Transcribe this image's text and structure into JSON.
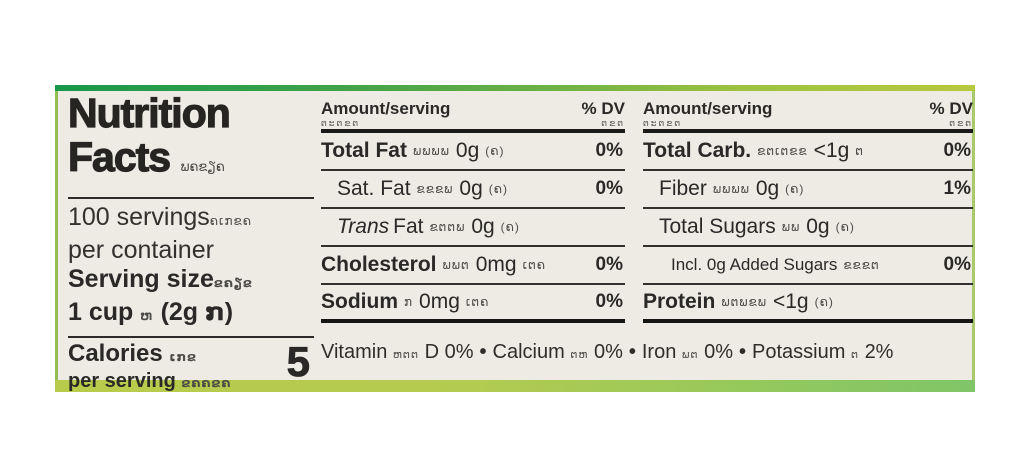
{
  "panel": {
    "background": "#edebe4",
    "accent_green_dark": "#17984a",
    "accent_green_yellow": "#b7c83e",
    "accent_bottom_left": "#b9cb4b",
    "accent_bottom_right": "#7fc568"
  },
  "left": {
    "title_line1": "Nutrition",
    "title_line2": "Facts",
    "title_suffix": "ພຄຂຽຄ",
    "servings_count": "100 servings",
    "servings_suffix": "ຄເກຂຄ",
    "servings_line2": "per container",
    "serving_size_label": "Serving size",
    "serving_size_suffix": "ຂຄຽຂ",
    "serving_size_value": "1 cup",
    "serving_size_mid": "ຫ",
    "serving_size_weight": "(2g ກ)",
    "calories_label": "Calories",
    "calories_suffix": "ເກຂ",
    "calories_sub": "per serving",
    "calories_sub_suffix": "ຂຄຄຂຄ",
    "calories_value": "5"
  },
  "mid": {
    "header_amount": "Amount/serving",
    "header_amount_sub": "ຕະຕຂຕ",
    "header_dv": "% DV",
    "header_dv_sub": "ຕຂຕ",
    "rows": [
      {
        "name": "Total Fat",
        "kh": "ພພພພ",
        "value": "0g",
        "kh2": "(ຄ)",
        "dv": "0%"
      },
      {
        "name": "Sat. Fat",
        "kh": "ຂຂຂພ",
        "value": "0g",
        "kh2": "(ຄ)",
        "dv": "0%"
      },
      {
        "name_italic": "Trans",
        "name": "Fat",
        "kh": "ຂຕຕພ",
        "value": "0g",
        "kh2": "(ຄ)",
        "dv": ""
      },
      {
        "name": "Cholesterol",
        "kh": "ພພຕ",
        "value": "0mg",
        "kh2": "ເຕຄ",
        "dv": "0%"
      },
      {
        "name": "Sodium",
        "kh": "ກ",
        "value": "0mg",
        "kh2": "ເຕຄ",
        "dv": "0%"
      }
    ]
  },
  "right": {
    "header_amount": "Amount/serving",
    "header_amount_sub": "ຕະຕຂຕ",
    "header_dv": "% DV",
    "header_dv_sub": "ຕຂຕ",
    "rows": [
      {
        "name": "Total Carb.",
        "kh": "ຂຕເຕຂຂ",
        "value": "<1g",
        "kh2": "ຕ",
        "dv": "0%"
      },
      {
        "name": "Fiber",
        "kh": "ພພພພ",
        "value": "0g",
        "kh2": "(ຄ)",
        "dv": "1%"
      },
      {
        "name": "Total Sugars",
        "kh": "ພພ",
        "value": "0g",
        "kh2": "(ຄ)",
        "dv": ""
      },
      {
        "name": "Incl. 0g Added Sugars",
        "kh": "ຂຂຂຕ",
        "value": "",
        "kh2": "",
        "dv": "0%"
      },
      {
        "name": "Protein",
        "kh": "ພຕພຂພ",
        "value": "<1g",
        "kh2": "(ຄ)",
        "dv": ""
      }
    ]
  },
  "footer": {
    "sep": "•",
    "items": [
      {
        "name": "Vitamin",
        "kh": "ຫຕຕ",
        "value": "D 0%"
      },
      {
        "name": "Calcium",
        "kh": "ຕຫ",
        "value": "0%"
      },
      {
        "name": "Iron",
        "kh": "ພຕ",
        "value": "0%"
      },
      {
        "name": "Potassium",
        "kh": "ຕ",
        "value": "2%"
      }
    ]
  }
}
